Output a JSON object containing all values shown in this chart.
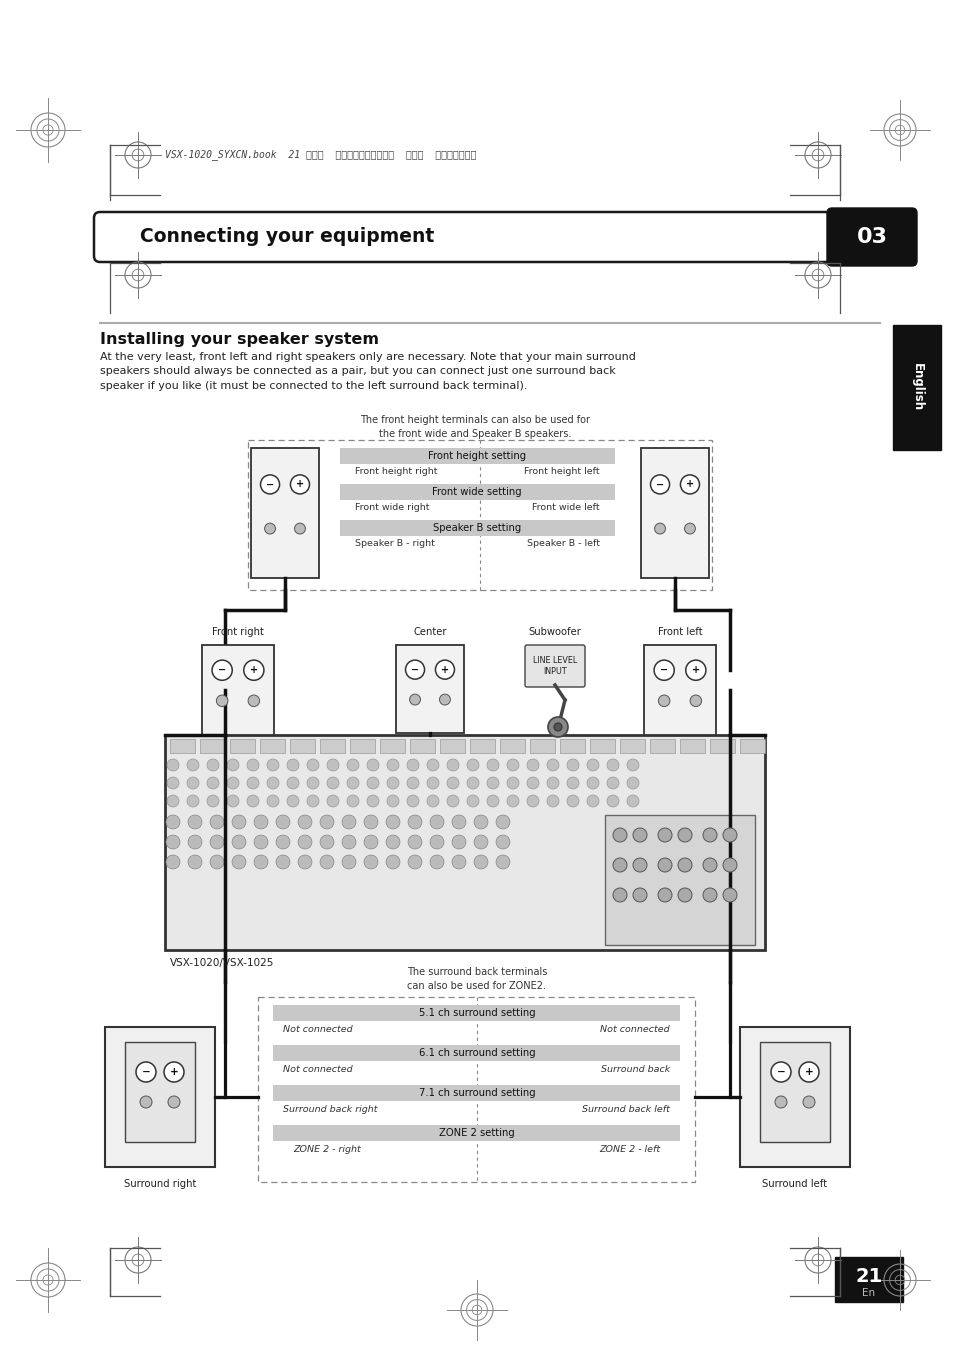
{
  "bg_color": "#ffffff",
  "page_title": "Connecting your equipment",
  "page_num": "03",
  "section_title": "Installing your speaker system",
  "body_text": "At the very least, front left and right speakers only are necessary. Note that your main surround\nspeakers should always be connected as a pair, but you can connect just one surround back\nspeaker if you like (it must be connected to the left surround back terminal).",
  "header_note": "The front height terminals can also be used for\nthe front wide and Speaker B speakers.",
  "top_label_fh": "Front height setting",
  "top_label_fh_r": "Front height right",
  "top_label_fh_l": "Front height left",
  "top_label_fw": "Front wide setting",
  "top_label_fw_r": "Front wide right",
  "top_label_fw_l": "Front wide left",
  "top_label_spkb": "Speaker B setting",
  "top_label_spkb_r": "Speaker B - right",
  "top_label_spkb_l": "Speaker B - left",
  "label_front_right": "Front right",
  "label_center": "Center",
  "label_subwoofer": "Subwoofer",
  "label_front_left": "Front left",
  "label_line_level": "LINE LEVEL\nINPUT",
  "label_receiver": "VSX-1020/VSX-1025",
  "surround_note": "The surround back terminals\ncan also be used for ZONE2.",
  "label_5_1": "5.1 ch surround setting",
  "label_not_connected_r": "Not connected",
  "label_not_connected_l": "Not connected",
  "label_6_1": "6.1 ch surround setting",
  "label_not_connected_r2": "Not connected",
  "label_surround_back": "Surround back",
  "label_7_1": "7.1 ch surround setting",
  "label_sb_right": "Surround back right",
  "label_sb_left": "Surround back left",
  "label_zone2": "ZONE 2 setting",
  "label_zone2_right": "ZONE 2 - right",
  "label_zone2_left": "ZONE 2 - left",
  "label_surround_right": "Surround right",
  "label_surround_left": "Surround left",
  "footer_page": "21",
  "footer_en": "En",
  "english_tab": "English",
  "header_text": "VSX-1020_SYXCN.book  21 ページ  ２０１０年３月１２日  金曜日  午前９時１０分"
}
